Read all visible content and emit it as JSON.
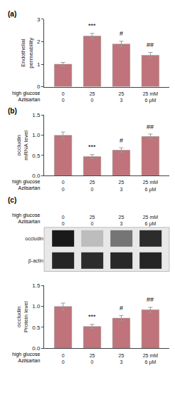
{
  "chart_data": [
    {
      "type": "bar",
      "panel_label": "(a)",
      "categories": [
        [
          "0",
          "0"
        ],
        [
          "25",
          "0"
        ],
        [
          "25",
          "3"
        ],
        [
          "25 mM",
          "6 μM"
        ]
      ],
      "category_titles": [
        "high glucose",
        "Azilsartan"
      ],
      "values": [
        1.0,
        2.25,
        1.9,
        1.4
      ],
      "errors": [
        0.08,
        0.12,
        0.12,
        0.12
      ],
      "ylabel": "Endothelial\npermeability",
      "ylim": [
        0,
        3.0
      ],
      "yticks": [
        0,
        1,
        2,
        3
      ],
      "marks_above": [
        null,
        "***",
        "#",
        "##"
      ],
      "color": "#c0737a",
      "grid": false
    },
    {
      "type": "bar",
      "panel_label": "(b)",
      "categories": [
        [
          "0",
          "0"
        ],
        [
          "25",
          "0"
        ],
        [
          "25",
          "3"
        ],
        [
          "25 mM",
          "6 μM"
        ]
      ],
      "category_titles": [
        "high glucose",
        "Azilsartan"
      ],
      "values": [
        1.0,
        0.47,
        0.63,
        0.97
      ],
      "errors": [
        0.08,
        0.05,
        0.06,
        0.06
      ],
      "ylabel": "occludin\nmRNA level",
      "ylim": [
        0,
        1.5
      ],
      "yticks": [
        {
          "value": 0,
          "label": "0.0"
        },
        0.5,
        {
          "value": 1.0,
          "label": "1.0"
        },
        1.5
      ],
      "marks_above": [
        null,
        "***",
        "#",
        "##"
      ],
      "color": "#c0737a",
      "grid": false
    },
    {
      "type": "blot",
      "panel_label": "(c)",
      "categories": [
        [
          "0",
          "0"
        ],
        [
          "25",
          "0"
        ],
        [
          "25",
          "3"
        ],
        [
          "25 mM",
          "6 μM"
        ]
      ],
      "category_titles": [
        "high glucose",
        "Azilsartan"
      ],
      "rows": [
        "occludin",
        "β-actin"
      ],
      "values": [
        [
          0.95,
          0.5,
          0.7,
          0.9
        ],
        [
          0.92,
          0.9,
          0.91,
          0.92
        ]
      ]
    },
    {
      "type": "bar",
      "categories": [
        [
          "0",
          "0"
        ],
        [
          "25",
          "0"
        ],
        [
          "25",
          "3"
        ],
        [
          "25 mM",
          "6 μM"
        ]
      ],
      "category_titles": [
        "high glucose",
        "Azilsartan"
      ],
      "values": [
        1.0,
        0.52,
        0.72,
        0.92
      ],
      "errors": [
        0.08,
        0.05,
        0.06,
        0.06
      ],
      "ylabel": "occludin\nProtein level",
      "ylim": [
        0,
        1.5
      ],
      "yticks": [
        {
          "value": 0,
          "label": "0.0"
        },
        0.5,
        {
          "value": 1.0,
          "label": "1.0"
        },
        1.5
      ],
      "marks_above": [
        null,
        "***",
        "#",
        "##"
      ],
      "color": "#c0737a",
      "grid": false
    }
  ]
}
